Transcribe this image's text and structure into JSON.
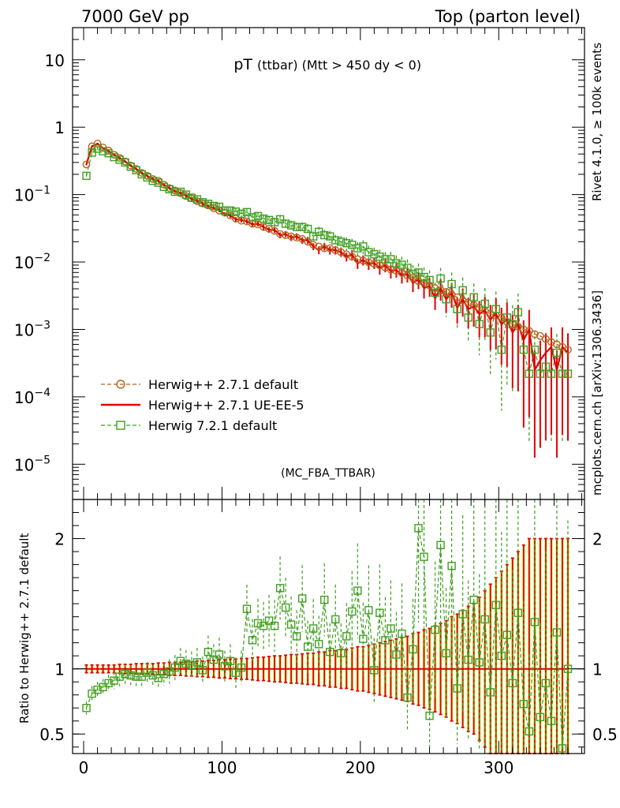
{
  "header": {
    "left": "7000 GeV pp",
    "right": "Top (parton level)"
  },
  "side": {
    "rivet": "Rivet 4.1.0, ≥ 100k events",
    "mcplots": "mcplots.cern.ch [arXiv:1306.3436]"
  },
  "plot": {
    "title_main": "pT",
    "title_sub": "(ttbar) (Mtt > 450 dy < 0)",
    "watermark": "(MC_FBA_TTBAR)",
    "ratio_ylabel": "Ratio to Herwig++ 2.7.1 default"
  },
  "colors": {
    "herwig_default": "#b8621b",
    "herwig_ueee5": "#e00000",
    "herwig7": "#3f9f1f",
    "band": "#ffff99",
    "band_green": "#99dd77"
  },
  "chart_data": [
    {
      "type": "line",
      "title": "pT (ttbar) (Mtt > 450 dy < 0)",
      "xlabel": "",
      "ylabel": "",
      "xlim": [
        -8,
        362
      ],
      "ylim": [
        3e-06,
        30
      ],
      "yscale": "log",
      "x_ticks": [
        "0",
        "100",
        "200",
        "300"
      ],
      "y_ticks": [
        "10",
        "1",
        "10^-1",
        "10^-2",
        "10^-3",
        "10^-4",
        "10^-5"
      ],
      "legend": {
        "position": "bottom-left",
        "entries": [
          "Herwig++ 2.7.1 default",
          "Herwig++ 2.7.1 UE-EE-5",
          "Herwig 7.2.1 default"
        ]
      },
      "x": [
        2,
        6,
        10,
        14,
        18,
        22,
        26,
        30,
        34,
        38,
        42,
        46,
        50,
        54,
        58,
        62,
        66,
        70,
        74,
        78,
        82,
        86,
        90,
        94,
        98,
        102,
        106,
        110,
        114,
        118,
        122,
        126,
        130,
        134,
        138,
        142,
        146,
        150,
        154,
        158,
        162,
        166,
        170,
        174,
        178,
        182,
        186,
        190,
        194,
        198,
        202,
        206,
        210,
        214,
        218,
        222,
        226,
        230,
        234,
        238,
        242,
        246,
        250,
        254,
        258,
        262,
        266,
        270,
        274,
        278,
        282,
        286,
        290,
        294,
        298,
        302,
        306,
        310,
        314,
        318,
        322,
        326,
        330,
        334,
        338,
        342,
        346,
        350
      ],
      "series": [
        {
          "name": "Herwig++ 2.7.1 default",
          "values": [
            0.28,
            0.52,
            0.57,
            0.5,
            0.45,
            0.39,
            0.35,
            0.31,
            0.27,
            0.24,
            0.21,
            0.19,
            0.17,
            0.16,
            0.14,
            0.125,
            0.115,
            0.105,
            0.095,
            0.088,
            0.08,
            0.074,
            0.069,
            0.063,
            0.058,
            0.054,
            0.049,
            0.044,
            0.041,
            0.04,
            0.037,
            0.036,
            0.033,
            0.031,
            0.029,
            0.026,
            0.025,
            0.024,
            0.023,
            0.022,
            0.02,
            0.018,
            0.017,
            0.016,
            0.016,
            0.015,
            0.014,
            0.013,
            0.012,
            0.011,
            0.0105,
            0.0099,
            0.0094,
            0.0089,
            0.0083,
            0.0077,
            0.0074,
            0.0069,
            0.0063,
            0.0058,
            0.0052,
            0.0049,
            0.0045,
            0.0041,
            0.0038,
            0.0036,
            0.0033,
            0.003,
            0.0027,
            0.0025,
            0.0023,
            0.0021,
            0.0019,
            0.0017,
            0.0016,
            0.0015,
            0.0013,
            0.0012,
            0.0011,
            0.001,
            0.00095,
            0.00085,
            0.0008,
            0.00072,
            0.00065,
            0.0006,
            0.00055,
            0.0005
          ]
        },
        {
          "name": "Herwig++ 2.7.1 UE-EE-5",
          "values": [
            0.28,
            0.52,
            0.57,
            0.49,
            0.44,
            0.39,
            0.35,
            0.31,
            0.27,
            0.24,
            0.21,
            0.19,
            0.17,
            0.16,
            0.14,
            0.125,
            0.112,
            0.105,
            0.096,
            0.086,
            0.081,
            0.073,
            0.067,
            0.063,
            0.059,
            0.051,
            0.049,
            0.043,
            0.042,
            0.04,
            0.036,
            0.037,
            0.033,
            0.03,
            0.03,
            0.025,
            0.026,
            0.023,
            0.024,
            0.021,
            0.021,
            0.017,
            0.015,
            0.017,
            0.015,
            0.015,
            0.014,
            0.012,
            0.013,
            0.0095,
            0.0107,
            0.0093,
            0.0097,
            0.0081,
            0.0089,
            0.0073,
            0.0076,
            0.0063,
            0.0066,
            0.0049,
            0.0055,
            0.0041,
            0.0044,
            0.0029,
            0.0041,
            0.0028,
            0.0035,
            0.0021,
            0.0028,
            0.002,
            0.0022,
            0.0017,
            0.0019,
            0.0014,
            0.0017,
            0.0012,
            0.0014,
            0.0009,
            0.0012,
            0.0007,
            0.001,
            0.00025,
            0.00035,
            0.00045,
            0.00055,
            0.00025,
            0.00055,
            0.00045
          ]
        },
        {
          "name": "Herwig 7.2.1 default",
          "values": [
            0.19,
            0.42,
            0.48,
            0.44,
            0.41,
            0.36,
            0.33,
            0.3,
            0.26,
            0.23,
            0.2,
            0.18,
            0.16,
            0.15,
            0.13,
            0.12,
            0.11,
            0.11,
            0.1,
            0.09,
            0.085,
            0.077,
            0.073,
            0.068,
            0.066,
            0.058,
            0.058,
            0.056,
            0.052,
            0.055,
            0.046,
            0.048,
            0.044,
            0.042,
            0.039,
            0.043,
            0.037,
            0.035,
            0.033,
            0.033,
            0.031,
            0.024,
            0.028,
            0.025,
            0.024,
            0.021,
            0.02,
            0.019,
            0.018,
            0.016,
            0.017,
            0.014,
            0.013,
            0.012,
            0.011,
            0.011,
            0.0096,
            0.0091,
            0.0082,
            0.0067,
            0.007,
            0.006,
            0.0054,
            0.0035,
            0.0057,
            0.0028,
            0.0047,
            0.002,
            0.0038,
            0.0015,
            0.003,
            0.0012,
            0.0024,
            0.0009,
            0.002,
            0.0005,
            0.0015,
            0.0012,
            0.0018,
            0.0005,
            0.00022,
            0.0005,
            0.00022,
            0.00028,
            0.00022,
            0.00045,
            0.00022,
            0.00022
          ]
        }
      ]
    },
    {
      "type": "line",
      "title": "",
      "xlabel": "",
      "ylabel": "Ratio to Herwig++ 2.7.1 default",
      "xlim": [
        -8,
        362
      ],
      "ylim": [
        0.35,
        2.3
      ],
      "x_ticks": [
        "0",
        "100",
        "200",
        "300"
      ],
      "y_ticks": [
        "2",
        "1",
        "0.5"
      ],
      "x": [
        2,
        6,
        10,
        14,
        18,
        22,
        26,
        30,
        34,
        38,
        42,
        46,
        50,
        54,
        58,
        62,
        66,
        70,
        74,
        78,
        82,
        86,
        90,
        94,
        98,
        102,
        106,
        110,
        114,
        118,
        122,
        126,
        130,
        134,
        138,
        142,
        146,
        150,
        154,
        158,
        162,
        166,
        170,
        174,
        178,
        182,
        186,
        190,
        194,
        198,
        202,
        206,
        210,
        214,
        218,
        222,
        226,
        230,
        234,
        238,
        242,
        246,
        250,
        254,
        258,
        262,
        266,
        270,
        274,
        278,
        282,
        286,
        290,
        294,
        298,
        302,
        306,
        310,
        314,
        318,
        322,
        326,
        330,
        334,
        338,
        342,
        346,
        350
      ],
      "band_rel_error": [
        0.03,
        0.03,
        0.03,
        0.03,
        0.03,
        0.03,
        0.035,
        0.035,
        0.035,
        0.04,
        0.04,
        0.04,
        0.04,
        0.045,
        0.045,
        0.05,
        0.05,
        0.05,
        0.055,
        0.055,
        0.06,
        0.06,
        0.065,
        0.065,
        0.07,
        0.07,
        0.075,
        0.075,
        0.08,
        0.08,
        0.085,
        0.09,
        0.09,
        0.095,
        0.1,
        0.1,
        0.105,
        0.11,
        0.11,
        0.115,
        0.12,
        0.12,
        0.13,
        0.13,
        0.14,
        0.14,
        0.15,
        0.15,
        0.16,
        0.17,
        0.17,
        0.18,
        0.19,
        0.2,
        0.21,
        0.22,
        0.23,
        0.24,
        0.25,
        0.27,
        0.28,
        0.3,
        0.31,
        0.33,
        0.35,
        0.37,
        0.4,
        0.42,
        0.45,
        0.48,
        0.5,
        0.55,
        0.6,
        0.65,
        0.7,
        0.75,
        0.8,
        0.85,
        0.9,
        0.95,
        1,
        1,
        1,
        1,
        1,
        1,
        1,
        1
      ],
      "series": [
        {
          "name": "Herwig++ 2.7.1 UE-EE-5",
          "values": [
            1,
            1,
            1,
            1,
            1,
            1,
            1,
            1,
            1,
            1,
            1,
            1,
            1,
            1,
            1,
            1,
            1,
            1,
            1,
            1,
            1,
            1,
            1,
            1,
            1,
            1,
            1,
            1,
            1,
            1,
            1,
            1,
            1,
            1,
            1,
            1,
            1,
            1,
            1,
            1,
            1,
            1,
            1,
            1,
            1,
            1,
            1,
            1,
            1,
            1,
            1,
            1,
            1,
            1,
            1,
            1,
            1,
            1,
            1,
            1,
            1,
            1,
            1,
            1,
            1,
            1,
            1,
            1,
            1,
            1,
            1,
            1,
            1,
            1,
            1,
            1,
            1,
            1,
            1,
            1,
            1,
            1,
            1,
            1,
            1,
            1,
            1,
            1
          ]
        },
        {
          "name": "Herwig 7.2.1 default",
          "values": [
            0.7,
            0.81,
            0.84,
            0.86,
            0.89,
            0.91,
            0.94,
            0.96,
            0.95,
            0.94,
            0.94,
            0.97,
            0.95,
            0.93,
            0.96,
            0.98,
            1.01,
            1.06,
            1.04,
            1.03,
            1.05,
            0.99,
            1.13,
            1.07,
            1.11,
            1.02,
            1.06,
            0.97,
            1.01,
            1.46,
            1.22,
            1.35,
            1.33,
            1.37,
            1.33,
            1.62,
            1.47,
            1.34,
            1.25,
            1.54,
            1.17,
            1.31,
            1.19,
            1.53,
            1.13,
            1.38,
            1.12,
            1.25,
            1.44,
            1.6,
            1.23,
            1.45,
            0.99,
            1.43,
            1.22,
            1.31,
            1.11,
            1.27,
            0.78,
            1.15,
            2.08,
            1.86,
            0.64,
            1.3,
            1.95,
            1.12,
            1.79,
            0.85,
            1.42,
            1.07,
            1.53,
            1.05,
            1.38,
            0.82,
            1.49,
            1.1,
            1.26,
            0.89,
            1.43,
            0.73,
            0.52,
            1.36,
            0.63,
            0.89,
            0.6,
            1.28,
            0.39,
            1.0
          ]
        }
      ]
    }
  ]
}
